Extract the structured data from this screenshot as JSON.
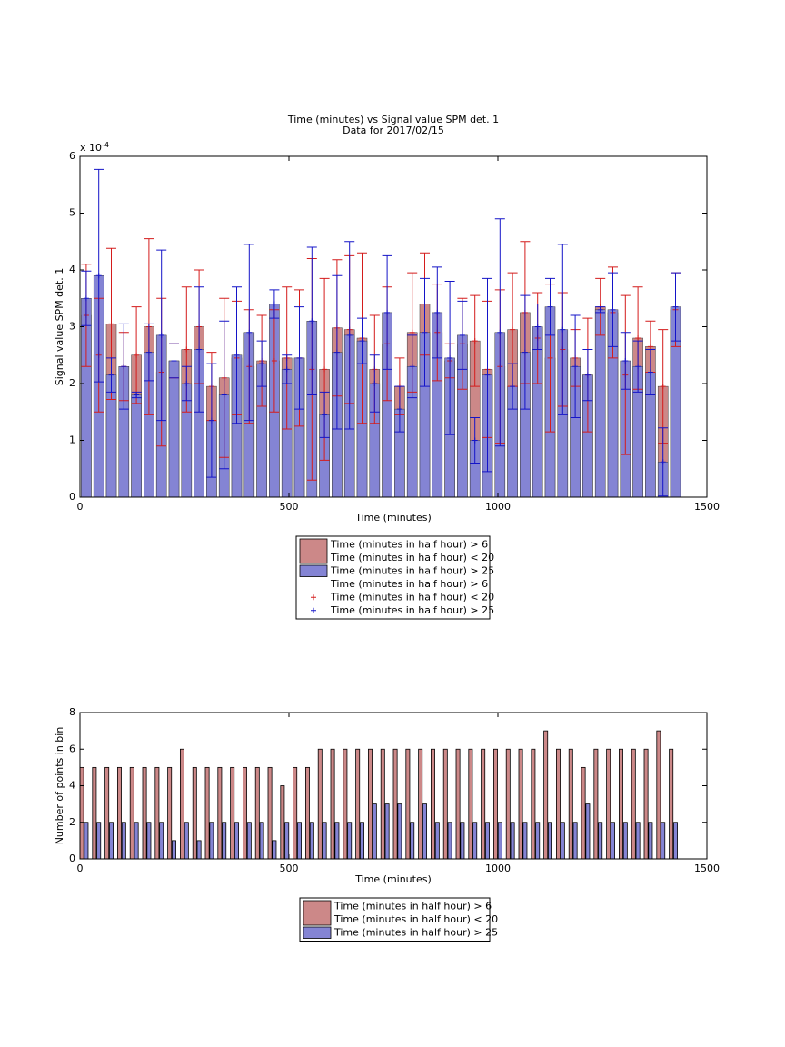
{
  "chart_data": [
    {
      "type": "bar",
      "title": [
        "Time (minutes) vs Signal value SPM det. 1",
        "Data for 2017/02/15"
      ],
      "xlabel": "Time (minutes)",
      "ylabel": "Signal value SPM det. 1",
      "y_exponent": {
        "base": "x 10",
        "exponent": "-4"
      },
      "x": [
        15,
        45,
        75,
        105,
        135,
        165,
        195,
        225,
        255,
        285,
        315,
        345,
        375,
        405,
        435,
        465,
        495,
        525,
        555,
        585,
        615,
        645,
        675,
        705,
        735,
        765,
        795,
        825,
        855,
        885,
        915,
        945,
        975,
        1005,
        1035,
        1065,
        1095,
        1125,
        1155,
        1185,
        1215,
        1245,
        1275,
        1305,
        1335,
        1365,
        1395,
        1425
      ],
      "xlim": [
        0,
        1500
      ],
      "xticks": [
        0,
        500,
        1000,
        1500
      ],
      "ylim": [
        0,
        6
      ],
      "yticks": [
        0,
        1,
        2,
        3,
        4,
        5,
        6
      ],
      "series": [
        {
          "name": [
            "Time (minutes in half hour) > 6",
            "Time (minutes in half hour) < 20"
          ],
          "color": "#cc8888",
          "error_color": "#d41c1c",
          "values": [
            3.2,
            2.5,
            3.05,
            2.3,
            2.5,
            3.0,
            2.2,
            2.4,
            2.6,
            3.0,
            1.95,
            2.1,
            2.45,
            2.3,
            2.4,
            2.4,
            2.45,
            2.45,
            2.25,
            2.25,
            2.98,
            2.95,
            2.8,
            2.25,
            2.7,
            1.95,
            2.9,
            3.4,
            2.9,
            2.4,
            2.7,
            2.75,
            2.25,
            2.3,
            2.95,
            3.25,
            2.8,
            2.45,
            2.6,
            2.45,
            2.15,
            3.35,
            3.25,
            2.15,
            2.8,
            2.65,
            1.95,
            3.3
          ],
          "errors": [
            0.9,
            1.0,
            1.33,
            0.6,
            0.85,
            1.55,
            1.3,
            0.3,
            1.1,
            1.0,
            0.6,
            1.4,
            1.0,
            1.0,
            0.8,
            0.9,
            1.25,
            1.2,
            1.95,
            1.6,
            1.2,
            1.3,
            1.5,
            0.95,
            1.0,
            0.5,
            1.05,
            0.9,
            0.85,
            0.3,
            0.8,
            0.8,
            1.2,
            1.35,
            1.0,
            1.25,
            0.8,
            1.3,
            1.0,
            0.5,
            1.0,
            0.5,
            0.8,
            1.4,
            0.9,
            0.45,
            1.0,
            0.65
          ]
        },
        {
          "name": [
            "Time (minutes in half hour) > 25"
          ],
          "color": "#8484d4",
          "error_color": "#1414c8",
          "values": [
            3.5,
            3.9,
            2.15,
            2.3,
            1.8,
            2.55,
            2.85,
            2.4,
            2.0,
            2.6,
            1.35,
            1.8,
            2.5,
            2.9,
            2.35,
            3.4,
            2.25,
            2.45,
            3.1,
            1.45,
            2.55,
            2.85,
            2.75,
            2.0,
            3.25,
            1.55,
            2.3,
            2.9,
            3.25,
            2.45,
            2.85,
            1.0,
            2.15,
            2.9,
            1.95,
            2.55,
            3.0,
            3.35,
            2.95,
            2.3,
            2.15,
            3.3,
            3.3,
            2.4,
            2.3,
            2.2,
            0.62,
            3.35
          ],
          "errors": [
            0.48,
            1.87,
            0.3,
            0.75,
            0.05,
            0.5,
            1.5,
            0.3,
            0.3,
            1.1,
            1.0,
            1.3,
            1.2,
            1.55,
            0.4,
            0.25,
            0.25,
            0.9,
            1.3,
            0.4,
            1.35,
            1.65,
            0.4,
            0.5,
            1.0,
            0.4,
            0.55,
            0.95,
            0.8,
            1.35,
            0.6,
            0.4,
            1.7,
            2.0,
            0.4,
            1.0,
            0.4,
            0.5,
            1.5,
            0.9,
            0.45,
            0.05,
            0.65,
            0.5,
            0.45,
            0.4,
            0.6,
            0.6
          ]
        }
      ]
    },
    {
      "type": "grouped-bar",
      "xlabel": "Time (minutes)",
      "ylabel": "Number of points in bin",
      "x": [
        15,
        45,
        75,
        105,
        135,
        165,
        195,
        225,
        255,
        285,
        315,
        345,
        375,
        405,
        435,
        465,
        495,
        525,
        555,
        585,
        615,
        645,
        675,
        705,
        735,
        765,
        795,
        825,
        855,
        885,
        915,
        945,
        975,
        1005,
        1035,
        1065,
        1095,
        1125,
        1155,
        1185,
        1215,
        1245,
        1275,
        1305,
        1335,
        1365,
        1395,
        1425
      ],
      "xlim": [
        0,
        1500
      ],
      "xticks": [
        0,
        500,
        1000,
        1500
      ],
      "ylim": [
        0,
        8
      ],
      "yticks": [
        0,
        2,
        4,
        6,
        8
      ],
      "series": [
        {
          "name": [
            "Time (minutes in half hour) > 6",
            "Time (minutes in half hour) < 20"
          ],
          "color": "#cc8888",
          "values": [
            5,
            5,
            5,
            5,
            5,
            5,
            5,
            5,
            6,
            5,
            5,
            5,
            5,
            5,
            5,
            5,
            4,
            5,
            5,
            6,
            6,
            6,
            6,
            6,
            6,
            6,
            6,
            6,
            6,
            6,
            6,
            6,
            6,
            6,
            6,
            6,
            6,
            7,
            6,
            6,
            5,
            6,
            6,
            6,
            6,
            6,
            7,
            6
          ]
        },
        {
          "name": [
            "Time (minutes in half hour) > 25"
          ],
          "color": "#8484d4",
          "values": [
            2,
            2,
            2,
            2,
            2,
            2,
            2,
            1,
            2,
            1,
            2,
            2,
            2,
            2,
            2,
            1,
            2,
            2,
            2,
            2,
            2,
            2,
            2,
            3,
            3,
            3,
            2,
            3,
            2,
            2,
            2,
            2,
            2,
            2,
            2,
            2,
            2,
            2,
            2,
            2,
            3,
            2,
            2,
            2,
            2,
            2,
            2,
            2
          ]
        }
      ]
    }
  ]
}
